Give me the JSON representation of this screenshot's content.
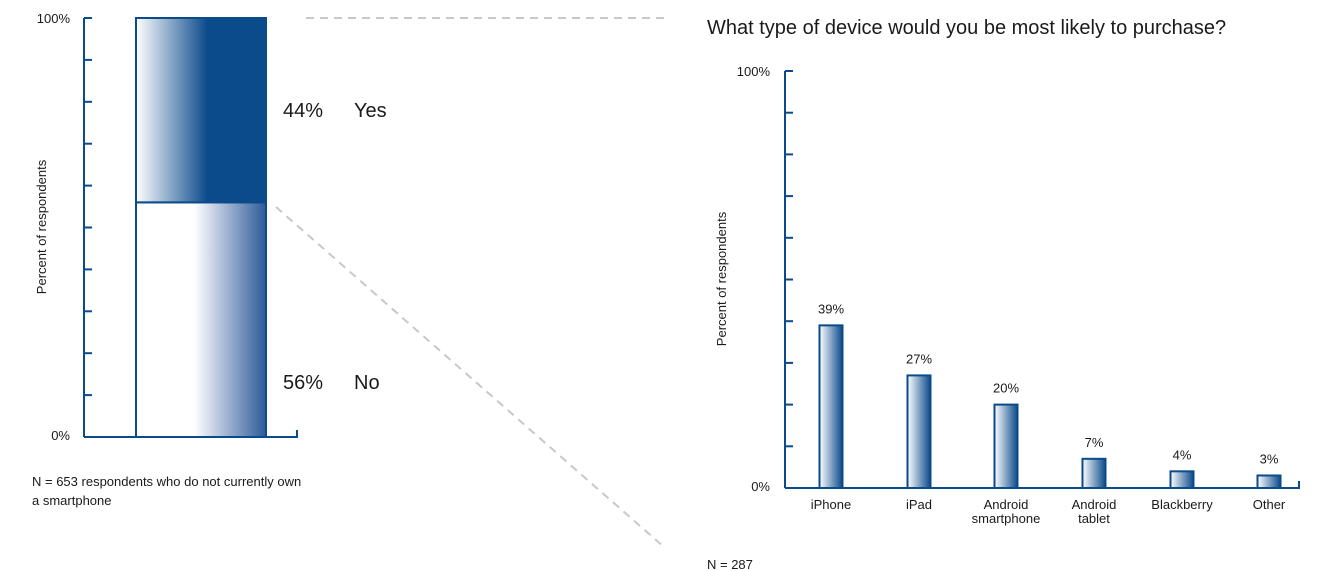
{
  "colors": {
    "axis": "#0b4a8b",
    "bar_dark": "#0b4a8b",
    "bar_light": "#ffffff",
    "connector": "#c8c8c8",
    "text": "#1a1a1a"
  },
  "chart_data": [
    {
      "type": "bar",
      "stacked": true,
      "title": "",
      "ylabel": "Percent of respondents",
      "ylim": [
        0,
        100
      ],
      "y_tick_labels": [
        "0%",
        "100%"
      ],
      "series": [
        {
          "name": "No",
          "value": 56,
          "label": "56%"
        },
        {
          "name": "Yes",
          "value": 44,
          "label": "44%"
        }
      ],
      "note": "N = 653 respondents who do not currently own a smartphone",
      "note_lines": [
        "N = 653 respondents who do not currently own",
        "a smartphone"
      ]
    },
    {
      "type": "bar",
      "title": "What type of device would you be most likely to purchase?",
      "ylabel": "Percent of respondents",
      "ylim": [
        0,
        100
      ],
      "y_tick_labels": [
        "0%",
        "100%"
      ],
      "categories": [
        [
          "iPhone"
        ],
        [
          "iPad"
        ],
        [
          "Android",
          "smartphone"
        ],
        [
          "Android",
          "tablet"
        ],
        [
          "Blackberry"
        ],
        [
          "Other"
        ]
      ],
      "values": [
        39,
        27,
        20,
        7,
        4,
        3
      ],
      "value_labels": [
        "39%",
        "27%",
        "20%",
        "7%",
        "4%",
        "3%"
      ],
      "note": "N = 287"
    }
  ]
}
